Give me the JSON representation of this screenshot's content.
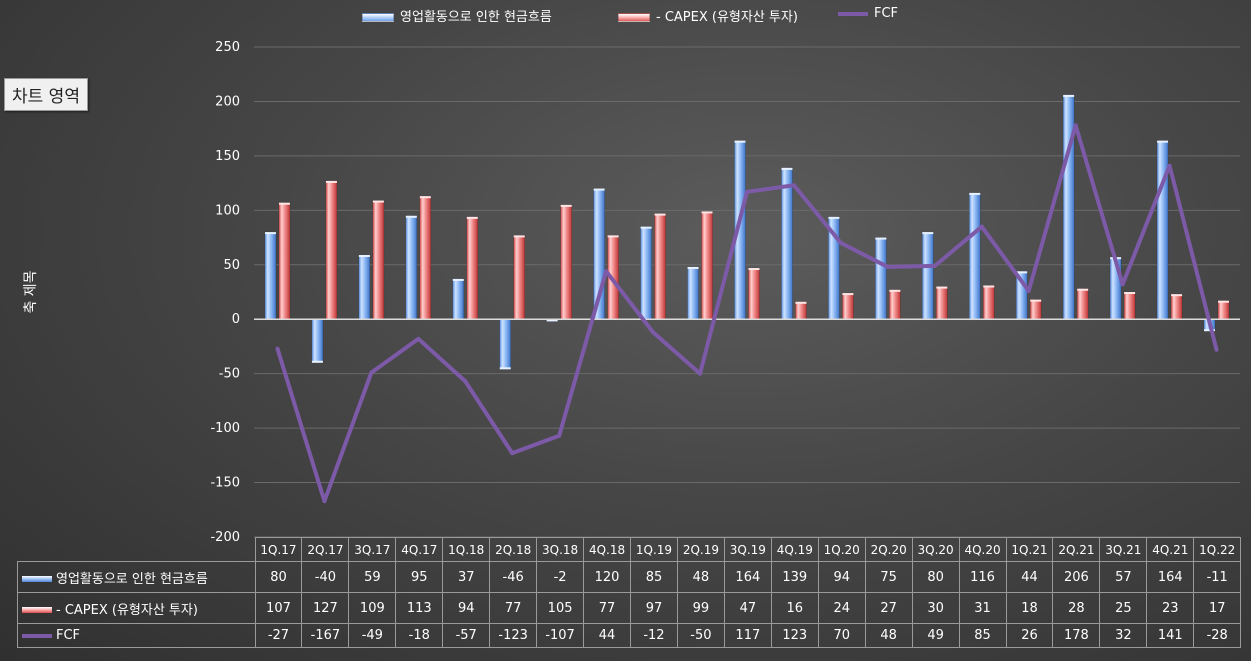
{
  "chart_data": {
    "type": "bar",
    "categories": [
      "1Q.17",
      "2Q.17",
      "3Q.17",
      "4Q.17",
      "1Q.18",
      "2Q.18",
      "3Q.18",
      "4Q.18",
      "1Q.19",
      "2Q.19",
      "3Q.19",
      "4Q.19",
      "1Q.20",
      "2Q.20",
      "3Q.20",
      "4Q.20",
      "1Q.21",
      "2Q.21",
      "3Q.21",
      "4Q.21",
      "1Q.22"
    ],
    "series": [
      {
        "name": "영업활동으로 인한 현금흐름",
        "kind": "bar",
        "color": "#6ea3ec",
        "values": [
          80,
          -40,
          59,
          95,
          37,
          -46,
          -2,
          120,
          85,
          48,
          164,
          139,
          94,
          75,
          80,
          116,
          44,
          206,
          57,
          164,
          -11
        ]
      },
      {
        "name": "- CAPEX (유형자산 투자)",
        "kind": "bar",
        "color": "#e35a5a",
        "values": [
          107,
          127,
          109,
          113,
          94,
          77,
          105,
          77,
          97,
          99,
          47,
          16,
          24,
          27,
          30,
          31,
          18,
          28,
          25,
          23,
          17
        ]
      },
      {
        "name": "FCF",
        "kind": "line",
        "color": "#7d5aa8",
        "values": [
          -27,
          -167,
          -49,
          -18,
          -57,
          -123,
          -107,
          44,
          -12,
          -50,
          117,
          123,
          70,
          48,
          49,
          85,
          26,
          178,
          32,
          141,
          -28
        ]
      }
    ],
    "ylabel": "축 제목",
    "ylim": [
      -200,
      250
    ],
    "yticks": [
      -200,
      -150,
      -100,
      -50,
      0,
      50,
      100,
      150,
      200,
      250
    ],
    "grid": true,
    "legend": "top",
    "data_table": true
  },
  "ui": {
    "chart_area_tooltip": "차트 영역"
  }
}
